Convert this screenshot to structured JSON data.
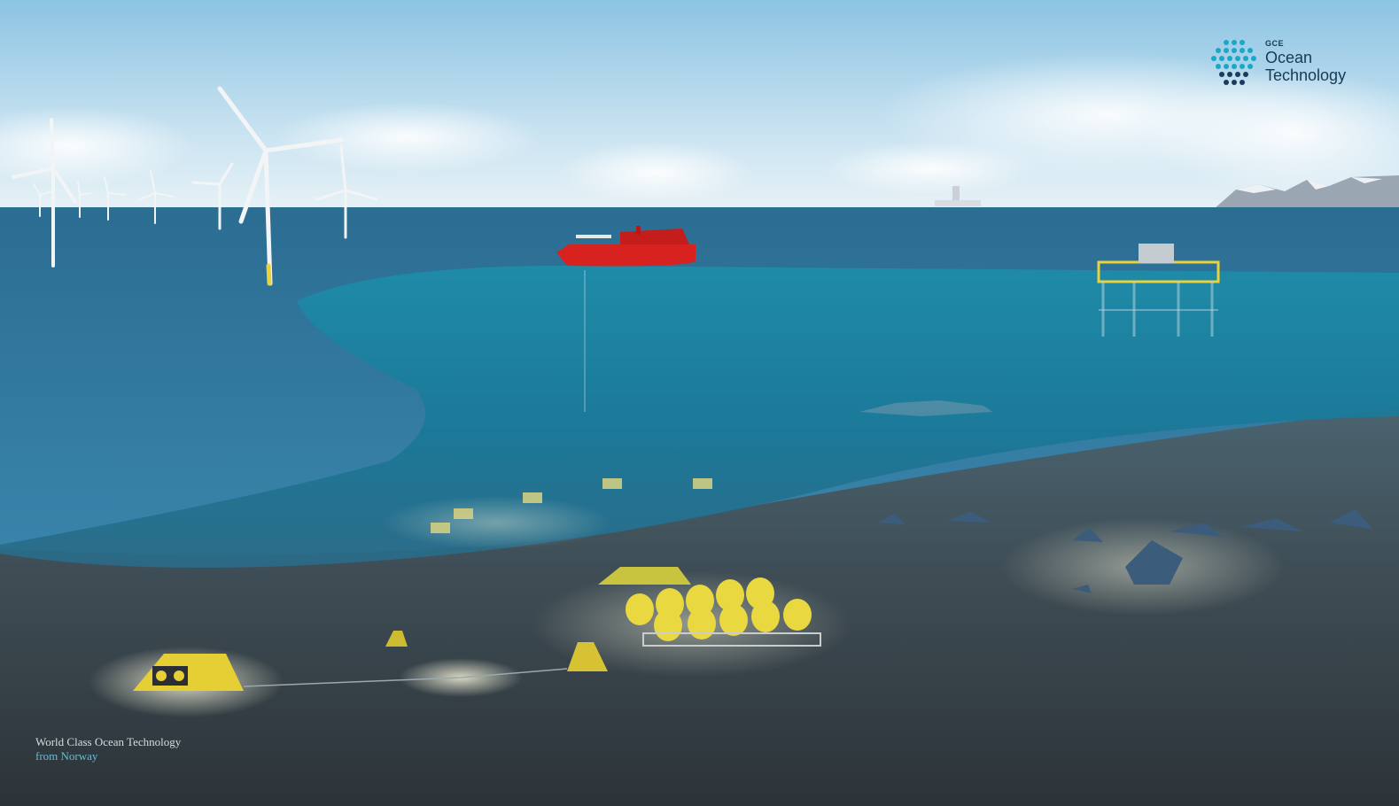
{
  "logo": {
    "small": "GCE",
    "line1": "Ocean",
    "line2": "Technology"
  },
  "tagline": {
    "line1": "World Class Ocean Technology",
    "line2": "from Norway"
  },
  "colors": {
    "sky_top": "#a9d4ec",
    "sea": "#2d6f93",
    "underwater": "#1e92ad",
    "seabed": "#3e4b52",
    "vessel": "#d8221f",
    "equipment": "#e9d33a",
    "logo_dots": "#1aa7c8"
  },
  "icons": [
    "wind-turbine-icon",
    "vessel-icon",
    "fish-farm-icon",
    "subsea-template-icon",
    "logo-mark-icon"
  ]
}
